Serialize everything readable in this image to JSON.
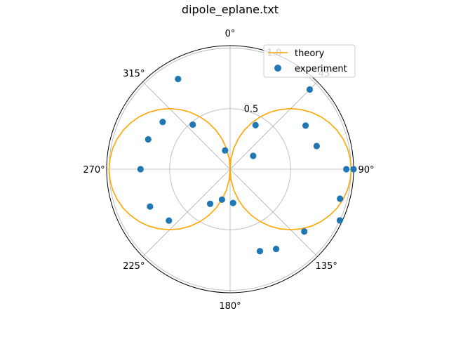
{
  "chart_data": {
    "type": "scatter",
    "projection": "polar",
    "title": "dipole_eplane.txt",
    "theta_zero_location": "N",
    "theta_direction": "clockwise",
    "rlim": [
      0,
      1.02
    ],
    "rticks": [
      0.5,
      1.0
    ],
    "rtick_labels": [
      "0.5",
      "1.0"
    ],
    "angle_ticks_deg": [
      0,
      45,
      90,
      135,
      180,
      225,
      270,
      315
    ],
    "angle_tick_labels": [
      "0°",
      "45°",
      "90°",
      "135°",
      "180°",
      "225°",
      "270°",
      "315°"
    ],
    "grid": true,
    "legend": {
      "placement": "upper right",
      "entries": [
        "theory",
        "experiment"
      ]
    },
    "series": [
      {
        "name": "theory",
        "kind": "line",
        "color": "#FFA500",
        "model": "|sin(theta)|",
        "theta_deg": [
          0,
          5,
          10,
          15,
          20,
          25,
          30,
          35,
          40,
          45,
          50,
          55,
          60,
          65,
          70,
          75,
          80,
          85,
          90,
          95,
          100,
          105,
          110,
          115,
          120,
          125,
          130,
          135,
          140,
          145,
          150,
          155,
          160,
          165,
          170,
          175,
          180,
          185,
          190,
          195,
          200,
          205,
          210,
          215,
          220,
          225,
          230,
          235,
          240,
          245,
          250,
          255,
          260,
          265,
          270,
          275,
          280,
          285,
          290,
          295,
          300,
          305,
          310,
          315,
          320,
          325,
          330,
          335,
          340,
          345,
          350,
          355,
          360
        ],
        "r": [
          0.0,
          0.087,
          0.174,
          0.259,
          0.342,
          0.423,
          0.5,
          0.574,
          0.643,
          0.707,
          0.766,
          0.819,
          0.866,
          0.906,
          0.94,
          0.966,
          0.985,
          0.996,
          1.0,
          0.996,
          0.985,
          0.966,
          0.94,
          0.906,
          0.866,
          0.819,
          0.766,
          0.707,
          0.643,
          0.574,
          0.5,
          0.423,
          0.342,
          0.259,
          0.174,
          0.087,
          0.0,
          0.087,
          0.174,
          0.259,
          0.342,
          0.423,
          0.5,
          0.574,
          0.643,
          0.707,
          0.766,
          0.819,
          0.866,
          0.906,
          0.94,
          0.966,
          0.985,
          0.996,
          1.0,
          0.996,
          0.985,
          0.966,
          0.94,
          0.906,
          0.866,
          0.819,
          0.766,
          0.707,
          0.643,
          0.574,
          0.5,
          0.423,
          0.342,
          0.259,
          0.174,
          0.087,
          0.0
        ]
      },
      {
        "name": "experiment",
        "kind": "scatter",
        "color": "#1f77b4",
        "theta_deg": [
          30,
          45,
          60,
          75,
          90,
          90,
          105,
          115,
          130,
          150,
          160,
          175,
          195,
          210,
          230,
          245,
          270,
          290,
          305,
          320,
          330,
          345,
          60
        ],
        "r": [
          0.42,
          0.93,
          0.72,
          0.74,
          0.96,
          1.02,
          0.94,
          1.0,
          0.8,
          0.76,
          0.72,
          0.28,
          0.26,
          0.33,
          0.66,
          0.73,
          0.74,
          0.72,
          0.68,
          0.48,
          0.86,
          0.16,
          0.22
        ]
      }
    ]
  }
}
